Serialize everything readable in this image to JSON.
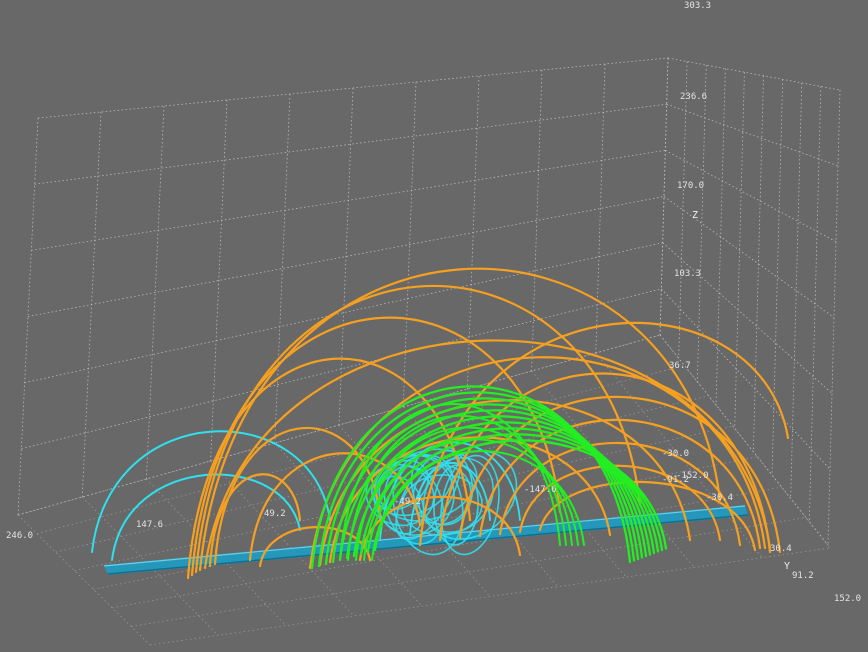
{
  "axes": {
    "z": {
      "label": "Z",
      "ticks": [
        "303.3",
        "236.6",
        "170.0",
        "103.3",
        "36.7"
      ]
    },
    "y": {
      "label": "Y",
      "ticks": [
        "30.4",
        "91.2",
        "152.0"
      ]
    },
    "x": {
      "ticks": [
        "246.0",
        "147.6",
        "49.2",
        "-49.2",
        "-147.6"
      ]
    },
    "side_ticks": [
      "-30.0",
      "-152.0",
      "-91.2",
      "-30.4"
    ]
  },
  "colors": {
    "background": "#686868",
    "flux_tube": "#1e9cc4",
    "cyan_lines": "#2fe0ee",
    "green_lines": "#22ee22",
    "orange_lines": "#f5a020"
  }
}
